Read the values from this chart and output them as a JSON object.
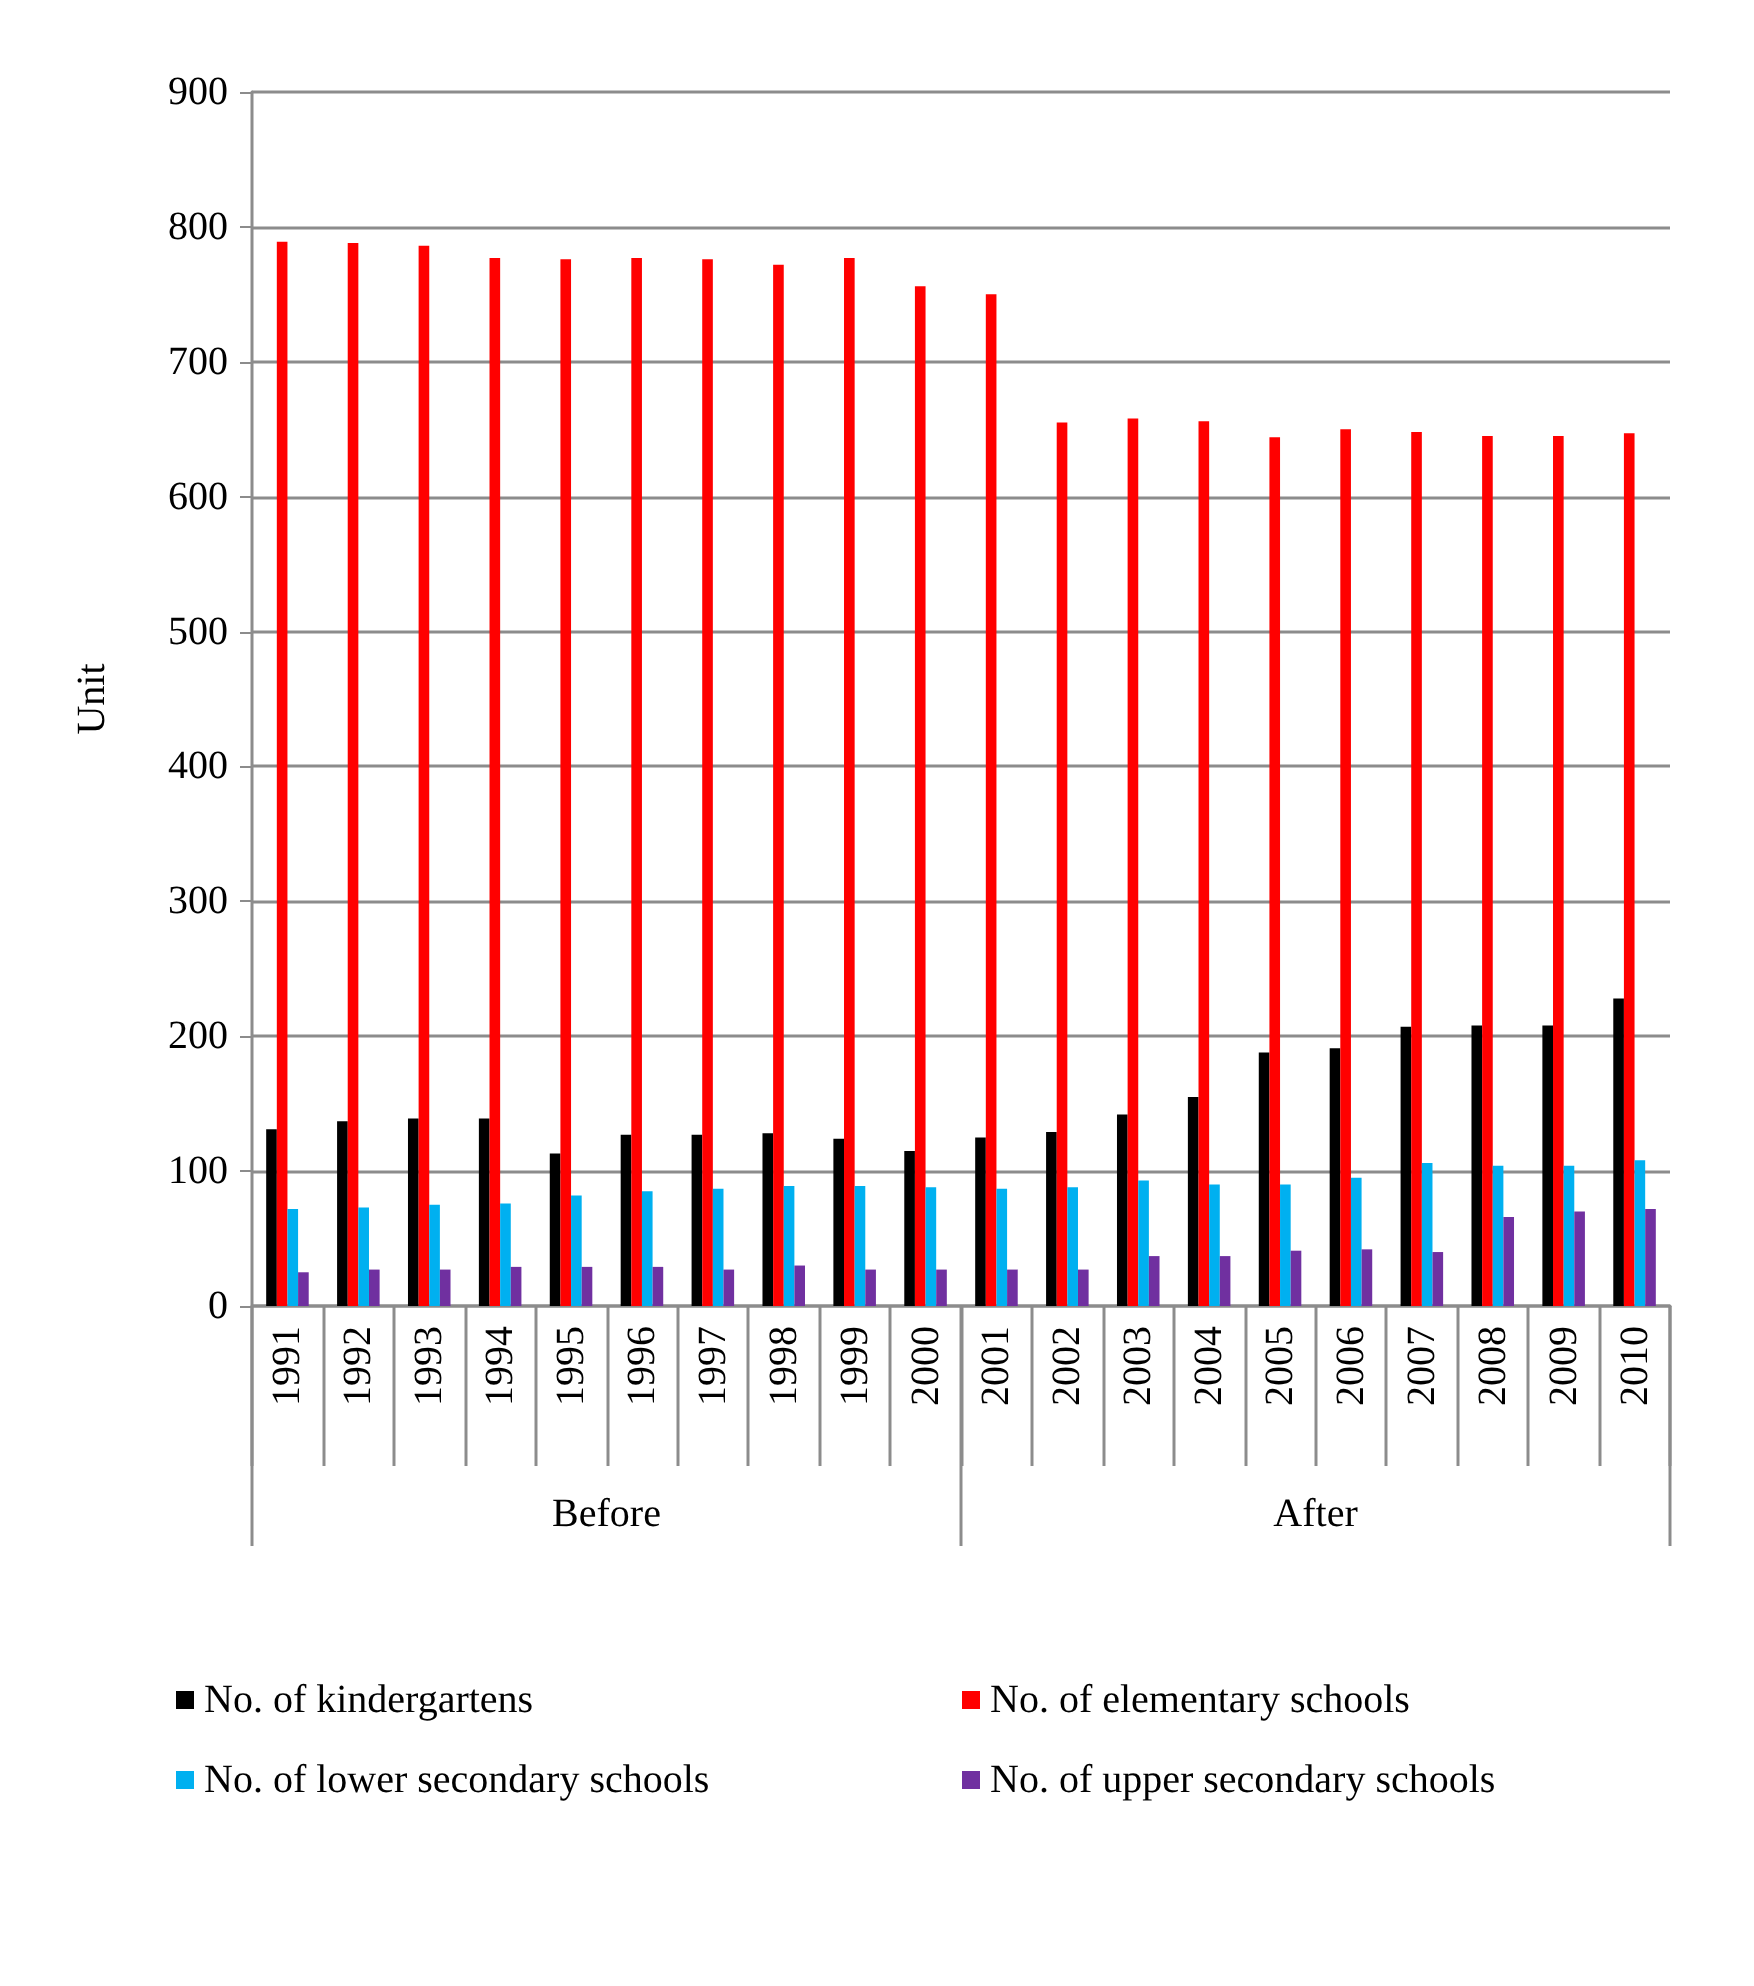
{
  "chart_data": {
    "type": "bar",
    "ylabel": "Unit",
    "categories": [
      "1991",
      "1992",
      "1993",
      "1994",
      "1995",
      "1996",
      "1997",
      "1998",
      "1999",
      "2000",
      "2001",
      "2002",
      "2003",
      "2004",
      "2005",
      "2006",
      "2007",
      "2008",
      "2009",
      "2010"
    ],
    "annotations": [
      "Before",
      "After"
    ],
    "series": [
      {
        "name": "No. of kindergartens",
        "color": "#000000",
        "values": [
          131,
          137,
          139,
          139,
          113,
          127,
          127,
          128,
          124,
          115,
          125,
          129,
          142,
          155,
          188,
          191,
          207,
          208,
          208,
          228
        ]
      },
      {
        "name": "No. of elementary schools",
        "color": "#ff0000",
        "values": [
          789,
          788,
          786,
          777,
          776,
          777,
          776,
          772,
          777,
          756,
          750,
          655,
          658,
          656,
          644,
          650,
          648,
          645,
          645,
          647
        ]
      },
      {
        "name": "No. of lower secondary schools",
        "color": "#00b0f0",
        "values": [
          72,
          73,
          75,
          76,
          82,
          85,
          87,
          89,
          89,
          88,
          87,
          88,
          93,
          90,
          90,
          95,
          106,
          104,
          104,
          108
        ]
      },
      {
        "name": "No. of upper secondary schools",
        "color": "#7030a0",
        "values": [
          25,
          27,
          27,
          29,
          29,
          29,
          27,
          30,
          27,
          27,
          27,
          27,
          37,
          37,
          41,
          42,
          40,
          66,
          70,
          72
        ]
      }
    ],
    "ylim": [
      0,
      900
    ],
    "yticks": [
      0,
      100,
      200,
      300,
      400,
      500,
      600,
      700,
      800,
      900
    ],
    "grid": "y",
    "legend": "bottom"
  }
}
